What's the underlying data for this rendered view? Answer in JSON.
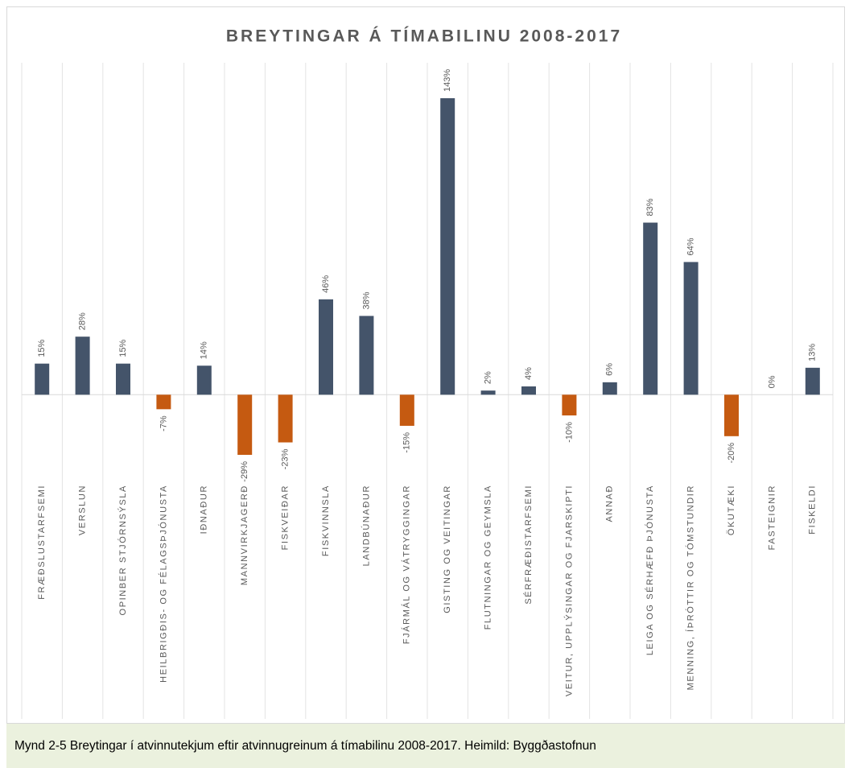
{
  "chart_data": {
    "type": "bar",
    "title": "BREYTINGAR  Á TÍMABILINU  2008-2017",
    "categories": [
      "FRÆÐSLUSTARFSEMI",
      "VERSLUN",
      "OPINBER STJÓRNSÝSLA",
      "HEILBRIGÐIS- OG FÉLAGSÞJÓNUSTA",
      "IÐNAÐUR",
      "MANNVIRKJAGERÐ",
      "FISKVEIÐAR",
      "FISKVINNSLA",
      "LANDBÚNAÐUR",
      "FJÁRMÁL OG VÁTRYGGINGAR",
      "GISTING OG VEITINGAR",
      "FLUTNINGAR OG GEYMSLA",
      "SÉRFRÆÐISTARFSEMI",
      "VEITUR, UPPLÝSINGAR OG FJARSKIPTI",
      "ANNAÐ",
      "LEIGA OG SÉRHÆFÐ ÞJÓNUSTA",
      "MENNING, ÍÞRÓTTIR OG TÓMSTUNDIR",
      "ÖKUTÆKI",
      "FASTEIGNIR",
      "FISKELDI"
    ],
    "values": [
      15,
      28,
      15,
      -7,
      14,
      -29,
      -23,
      46,
      38,
      -15,
      143,
      2,
      4,
      -10,
      6,
      83,
      64,
      -20,
      0,
      13
    ],
    "value_labels": [
      "15%",
      "28%",
      "15%",
      "-7%",
      "14%",
      "-29%",
      "-23%",
      "46%",
      "38%",
      "-15%",
      "143%",
      "2%",
      "4%",
      "-10%",
      "6%",
      "83%",
      "64%",
      "-20%",
      "0%",
      "13%"
    ],
    "colors": {
      "positive": "#44546a",
      "negative": "#c55a11"
    },
    "grid": true
  },
  "caption": "Mynd 2-5 Breytingar í atvinnutekjum eftir atvinnugreinum á tímabilinu 2008-2017. Heimild: Byggðastofnun"
}
